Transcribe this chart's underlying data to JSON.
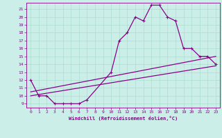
{
  "xlabel": "Windchill (Refroidissement éolien,°C)",
  "bg_color": "#cceee8",
  "grid_color": "#aaddcc",
  "line_color": "#880088",
  "xlim": [
    -0.5,
    23.5
  ],
  "ylim": [
    8.5,
    21.8
  ],
  "xticks": [
    0,
    1,
    2,
    3,
    4,
    5,
    6,
    7,
    8,
    9,
    10,
    11,
    12,
    13,
    14,
    15,
    16,
    17,
    18,
    19,
    20,
    21,
    22,
    23
  ],
  "yticks": [
    9,
    10,
    11,
    12,
    13,
    14,
    15,
    16,
    17,
    18,
    19,
    20,
    21
  ],
  "curve1_x": [
    0,
    1,
    2,
    3,
    4,
    5,
    6,
    7,
    10,
    11,
    12,
    13,
    14,
    15,
    16,
    17,
    18,
    19,
    20,
    21,
    22,
    23
  ],
  "curve1_y": [
    12,
    10,
    10,
    9,
    9,
    9,
    9,
    9.5,
    13,
    17,
    18,
    20,
    19.5,
    21.5,
    21.5,
    20,
    19.5,
    16,
    16,
    15,
    15,
    14
  ],
  "curve2_x": [
    0,
    23
  ],
  "curve2_y": [
    10.5,
    15.0
  ],
  "curve3_x": [
    0,
    23
  ],
  "curve3_y": [
    10.0,
    13.8
  ]
}
